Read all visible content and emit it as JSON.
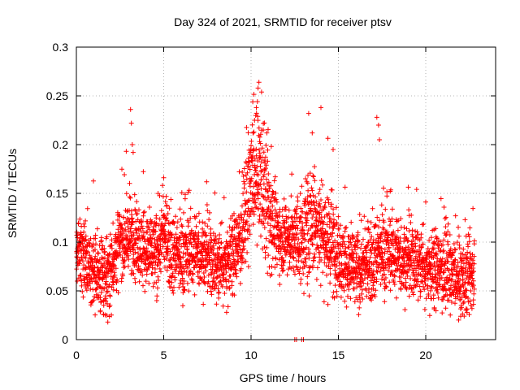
{
  "chart_data": {
    "type": "scatter",
    "title": "Day 324 of 2021, SRMTID for receiver ptsv",
    "xlabel": "GPS time / hours",
    "ylabel": "SRMTID / TECUs",
    "xlim": [
      0,
      24
    ],
    "ylim": [
      0,
      0.3
    ],
    "xticks": [
      0,
      5,
      10,
      15,
      20
    ],
    "xtick_labels": [
      "0",
      "5",
      "10",
      "15",
      "20"
    ],
    "yticks": [
      0,
      0.05,
      0.1,
      0.15,
      0.2,
      0.25,
      0.3
    ],
    "ytick_labels": [
      "0",
      "0.05",
      "0.1",
      "0.15",
      "0.2",
      "0.25",
      "0.3"
    ],
    "grid": true,
    "marker": "plus",
    "color": "#ff0000",
    "series": [
      {
        "name": "SRMTID",
        "profile": [
          [
            0.0,
            0.09
          ],
          [
            0.5,
            0.08
          ],
          [
            1.0,
            0.07
          ],
          [
            1.5,
            0.065
          ],
          [
            2.0,
            0.075
          ],
          [
            2.5,
            0.1
          ],
          [
            3.0,
            0.105
          ],
          [
            3.5,
            0.1
          ],
          [
            4.0,
            0.09
          ],
          [
            4.5,
            0.085
          ],
          [
            5.0,
            0.11
          ],
          [
            5.5,
            0.09
          ],
          [
            6.0,
            0.085
          ],
          [
            6.5,
            0.09
          ],
          [
            7.0,
            0.09
          ],
          [
            7.5,
            0.085
          ],
          [
            8.0,
            0.075
          ],
          [
            8.5,
            0.08
          ],
          [
            9.0,
            0.085
          ],
          [
            9.5,
            0.11
          ],
          [
            10.0,
            0.16
          ],
          [
            10.5,
            0.17
          ],
          [
            11.0,
            0.13
          ],
          [
            11.5,
            0.11
          ],
          [
            12.0,
            0.105
          ],
          [
            12.5,
            0.1
          ],
          [
            13.0,
            0.105
          ],
          [
            13.5,
            0.12
          ],
          [
            14.0,
            0.115
          ],
          [
            14.5,
            0.1
          ],
          [
            15.0,
            0.085
          ],
          [
            15.5,
            0.075
          ],
          [
            16.0,
            0.07
          ],
          [
            16.5,
            0.075
          ],
          [
            17.0,
            0.085
          ],
          [
            17.5,
            0.09
          ],
          [
            18.0,
            0.09
          ],
          [
            18.5,
            0.085
          ],
          [
            19.0,
            0.08
          ],
          [
            19.5,
            0.08
          ],
          [
            20.0,
            0.075
          ],
          [
            20.5,
            0.07
          ],
          [
            21.0,
            0.075
          ],
          [
            21.5,
            0.065
          ],
          [
            22.0,
            0.06
          ],
          [
            22.5,
            0.065
          ],
          [
            22.8,
            0.07
          ]
        ],
        "samples_per_hour": 150,
        "spread": 0.028,
        "extreme_points": [
          [
            3.1,
            0.236
          ],
          [
            3.15,
            0.222
          ],
          [
            3.2,
            0.2
          ],
          [
            3.25,
            0.192
          ],
          [
            5.0,
            0.166
          ],
          [
            10.1,
            0.244
          ],
          [
            10.4,
            0.258
          ],
          [
            10.45,
            0.264
          ],
          [
            10.6,
            0.254
          ],
          [
            10.3,
            0.238
          ],
          [
            10.2,
            0.225
          ],
          [
            10.7,
            0.215
          ],
          [
            14.0,
            0.238
          ],
          [
            13.3,
            0.232
          ],
          [
            13.5,
            0.212
          ],
          [
            14.7,
            0.195
          ],
          [
            17.2,
            0.228
          ],
          [
            17.3,
            0.22
          ],
          [
            17.35,
            0.205
          ],
          [
            22.0,
            0.024
          ],
          [
            1.8,
            0.018
          ],
          [
            1.75,
            0.025
          ],
          [
            22.3,
            0.03
          ],
          [
            8.6,
            0.028
          ],
          [
            14.4,
            0.036
          ],
          [
            4.6,
            0.04
          ],
          [
            16.2,
            0.045
          ]
        ],
        "zero_points": [
          12.5,
          12.6,
          12.9,
          13.0
        ]
      }
    ]
  }
}
